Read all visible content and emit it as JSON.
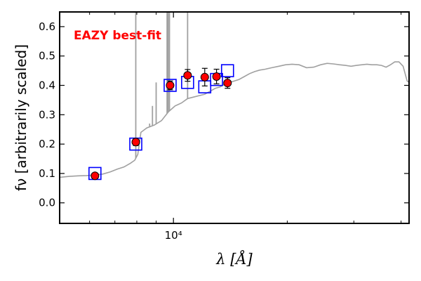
{
  "chart_data": {
    "type": "scatter",
    "title": "",
    "xlabel": "λ [Å]",
    "ylabel": "fν [arbitrarily scaled]",
    "xscale": "log",
    "xlim": [
      5000,
      42000
    ],
    "ylim": [
      -0.07,
      0.65
    ],
    "xticks": [
      {
        "value": 10000,
        "label": "10⁴"
      }
    ],
    "yticks": [
      0.0,
      0.1,
      0.2,
      0.3,
      0.4,
      0.5,
      0.6
    ],
    "grid": false,
    "annotation": {
      "text": "EAZY best-fit",
      "color": "#ff0000"
    },
    "series": [
      {
        "kind": "template_line",
        "color": "#a0a0a0",
        "x": [
          5000,
          5300,
          5600,
          5900,
          6200,
          6500,
          6800,
          7100,
          7400,
          7700,
          7900,
          8050,
          8200,
          8500,
          8900,
          9300,
          9700,
          10100,
          10500,
          10900,
          11300,
          11700,
          12100,
          12500,
          12900,
          13300,
          13700,
          14100,
          14500,
          14900,
          15400,
          15900,
          16400,
          16900,
          17500,
          18200,
          19000,
          19800,
          20600,
          21500,
          22500,
          23500,
          24500,
          25500,
          26500,
          27500,
          28500,
          29500,
          30500,
          31500,
          32500,
          33500,
          34500,
          35500,
          36500,
          37500,
          38500,
          39500,
          40500,
          41500,
          42000
        ],
        "y": [
          0.087,
          0.09,
          0.092,
          0.093,
          0.095,
          0.098,
          0.105,
          0.115,
          0.122,
          0.135,
          0.145,
          0.165,
          0.24,
          0.255,
          0.265,
          0.28,
          0.31,
          0.33,
          0.34,
          0.355,
          0.36,
          0.365,
          0.37,
          0.38,
          0.39,
          0.395,
          0.405,
          0.41,
          0.415,
          0.42,
          0.43,
          0.44,
          0.447,
          0.452,
          0.455,
          0.46,
          0.465,
          0.47,
          0.472,
          0.47,
          0.46,
          0.462,
          0.47,
          0.475,
          0.473,
          0.47,
          0.468,
          0.465,
          0.468,
          0.47,
          0.472,
          0.47,
          0.47,
          0.468,
          0.462,
          0.47,
          0.48,
          0.48,
          0.465,
          0.415,
          0.41
        ],
        "lines": [
          {
            "x": 7950,
            "peak": 0.8
          },
          {
            "x": 8650,
            "peak": 0.27
          },
          {
            "x": 8800,
            "peak": 0.33
          },
          {
            "x": 9000,
            "peak": 0.41
          },
          {
            "x": 9620,
            "peak": 0.8
          },
          {
            "x": 9680,
            "peak": 0.8
          },
          {
            "x": 9760,
            "peak": 0.8
          },
          {
            "x": 10900,
            "peak": 0.8
          }
        ]
      },
      {
        "kind": "model_photometry",
        "marker": "open-square",
        "color": "#0000ff",
        "x": [
          6200,
          7950,
          9800,
          10900,
          12100,
          13000,
          13900
        ],
        "y": [
          0.1,
          0.2,
          0.4,
          0.41,
          0.395,
          0.42,
          0.45
        ]
      },
      {
        "kind": "observed_photometry",
        "marker": "filled-circle",
        "color": "#ff0000",
        "x": [
          6200,
          7950,
          9800,
          10900,
          12100,
          13000,
          13900
        ],
        "y": [
          0.092,
          0.207,
          0.4,
          0.434,
          0.428,
          0.43,
          0.408
        ],
        "yerr": [
          0.008,
          0.012,
          0.015,
          0.02,
          0.03,
          0.025,
          0.018
        ]
      }
    ]
  }
}
